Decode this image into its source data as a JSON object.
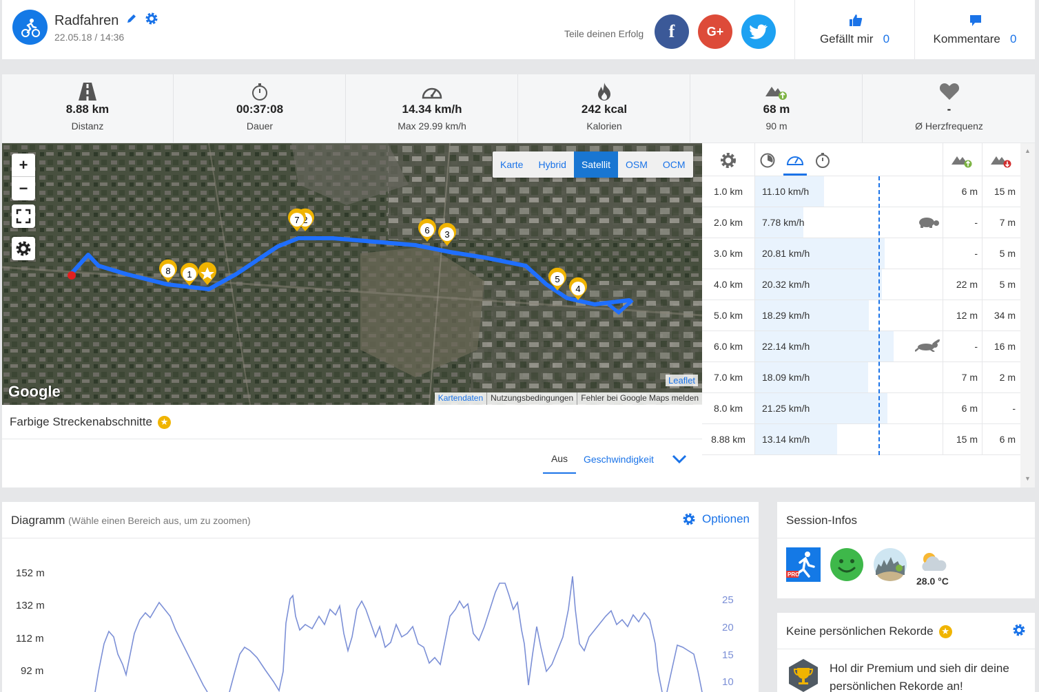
{
  "header": {
    "title": "Radfahren",
    "date": "22.05.18 / 14:36",
    "share_text": "Teile deinen Erfolg",
    "likes_label": "Gefällt mir",
    "likes_count": "0",
    "comments_label": "Kommentare",
    "comments_count": "0"
  },
  "stats": [
    {
      "value": "8.88 km",
      "label": "Distanz",
      "icon": "road-icon"
    },
    {
      "value": "00:37:08",
      "label": "Dauer",
      "icon": "stopwatch-icon"
    },
    {
      "value": "14.34 km/h",
      "label": "Max 29.99 km/h",
      "icon": "speedometer-icon"
    },
    {
      "value": "242 kcal",
      "label": "Kalorien",
      "icon": "flame-icon"
    },
    {
      "value": "68 m",
      "label": "90 m",
      "icon": "elevation-up-icon"
    },
    {
      "value": "-",
      "label": "Ø Herzfrequenz",
      "icon": "heart-icon"
    }
  ],
  "map": {
    "layers": [
      "Karte",
      "Hybrid",
      "Satellit",
      "OSM",
      "OCM"
    ],
    "active_layer": "Satellit",
    "zoom_in": "+",
    "zoom_out": "−",
    "google": "Google",
    "leaflet": "Leaflet",
    "attribution": [
      "Kartendaten",
      "Nutzungsbedingungen",
      "Fehler bei Google Maps melden"
    ],
    "markers": [
      "1",
      "2",
      "3",
      "4",
      "5",
      "6",
      "7",
      "8"
    ],
    "route_color": "#1f6fff",
    "marker_color": "#f0b400"
  },
  "segments": {
    "title": "Farbige Streckenabschnitte",
    "tab_off": "Aus",
    "tab_speed": "Geschwindigkeit"
  },
  "splits": {
    "max_speed": 29.99,
    "rows": [
      {
        "km": "1.0 km",
        "speed": "11.10 km/h",
        "speed_val": 11.1,
        "up": "6 m",
        "down": "15 m",
        "badge": ""
      },
      {
        "km": "2.0 km",
        "speed": "7.78 km/h",
        "speed_val": 7.78,
        "up": "-",
        "down": "7 m",
        "badge": "turtle"
      },
      {
        "km": "3.0 km",
        "speed": "20.81 km/h",
        "speed_val": 20.81,
        "up": "-",
        "down": "5 m",
        "badge": ""
      },
      {
        "km": "4.0 km",
        "speed": "20.32 km/h",
        "speed_val": 20.32,
        "up": "22 m",
        "down": "5 m",
        "badge": ""
      },
      {
        "km": "5.0 km",
        "speed": "18.29 km/h",
        "speed_val": 18.29,
        "up": "12 m",
        "down": "34 m",
        "badge": ""
      },
      {
        "km": "6.0 km",
        "speed": "22.14 km/h",
        "speed_val": 22.14,
        "up": "-",
        "down": "16 m",
        "badge": "hare"
      },
      {
        "km": "7.0 km",
        "speed": "18.09 km/h",
        "speed_val": 18.09,
        "up": "7 m",
        "down": "2 m",
        "badge": ""
      },
      {
        "km": "8.0 km",
        "speed": "21.25 km/h",
        "speed_val": 21.25,
        "up": "6 m",
        "down": "-",
        "badge": ""
      },
      {
        "km": "8.88 km",
        "speed": "13.14 km/h",
        "speed_val": 13.14,
        "up": "15 m",
        "down": "6 m",
        "badge": ""
      }
    ]
  },
  "diagram": {
    "title": "Diagramm",
    "hint": "(Wähle einen Bereich aus, um zu zoomen)",
    "options_label": "Optionen",
    "y_left": [
      "152 m",
      "132 m",
      "112 m",
      "92 m"
    ],
    "y_right": [
      "25",
      "20",
      "15",
      "10"
    ],
    "line_color": "#7b8fd6"
  },
  "session": {
    "title": "Session-Infos",
    "temperature": "28.0 °C"
  },
  "records": {
    "title": "Keine persönlichen Rekorde",
    "text": "Hol dir Premium und sieh dir deine persönlichen Rekorde an!"
  }
}
